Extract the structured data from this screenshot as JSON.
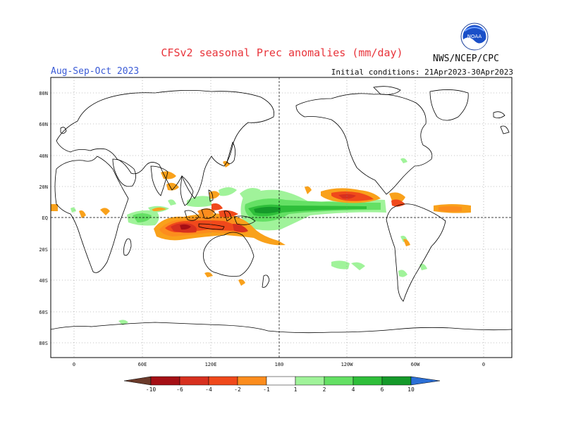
{
  "header": {
    "title": "CFSv2 seasonal Prec anomalies (mm/day)",
    "season": "Aug-Sep-Oct 2023",
    "initial_conditions": "Initial conditions: 21Apr2023-30Apr2023",
    "agency": "NWS/NCEP/CPC",
    "logo_text": "NOAA"
  },
  "map": {
    "lat_ticks": [
      "80N",
      "60N",
      "40N",
      "20N",
      "EQ",
      "20S",
      "40S",
      "60S",
      "80S"
    ],
    "lon_ticks": [
      "0",
      "60E",
      "120E",
      "180",
      "120W",
      "60W",
      "0"
    ],
    "land_outline_color": "#000000",
    "grid_color": "#888888"
  },
  "legend": {
    "labels": [
      "-10",
      "-6",
      "-4",
      "-2",
      "-1",
      "1",
      "2",
      "4",
      "6",
      "10"
    ],
    "colors": {
      "below_min": "#6b3a2a",
      "neg_10_6": "#a50f15",
      "neg_6_4": "#d7301f",
      "neg_4_2": "#f0491b",
      "neg_2_1": "#fc8d1e",
      "neg_1_0": "#f9a11b",
      "pos_1_2": "#a0f39a",
      "pos_2_4": "#64e064",
      "pos_4_6": "#2fbf3a",
      "pos_6_10": "#159a2a",
      "pos_over_10": "#2b6fd6",
      "above_max": "#2b3cd6"
    }
  }
}
